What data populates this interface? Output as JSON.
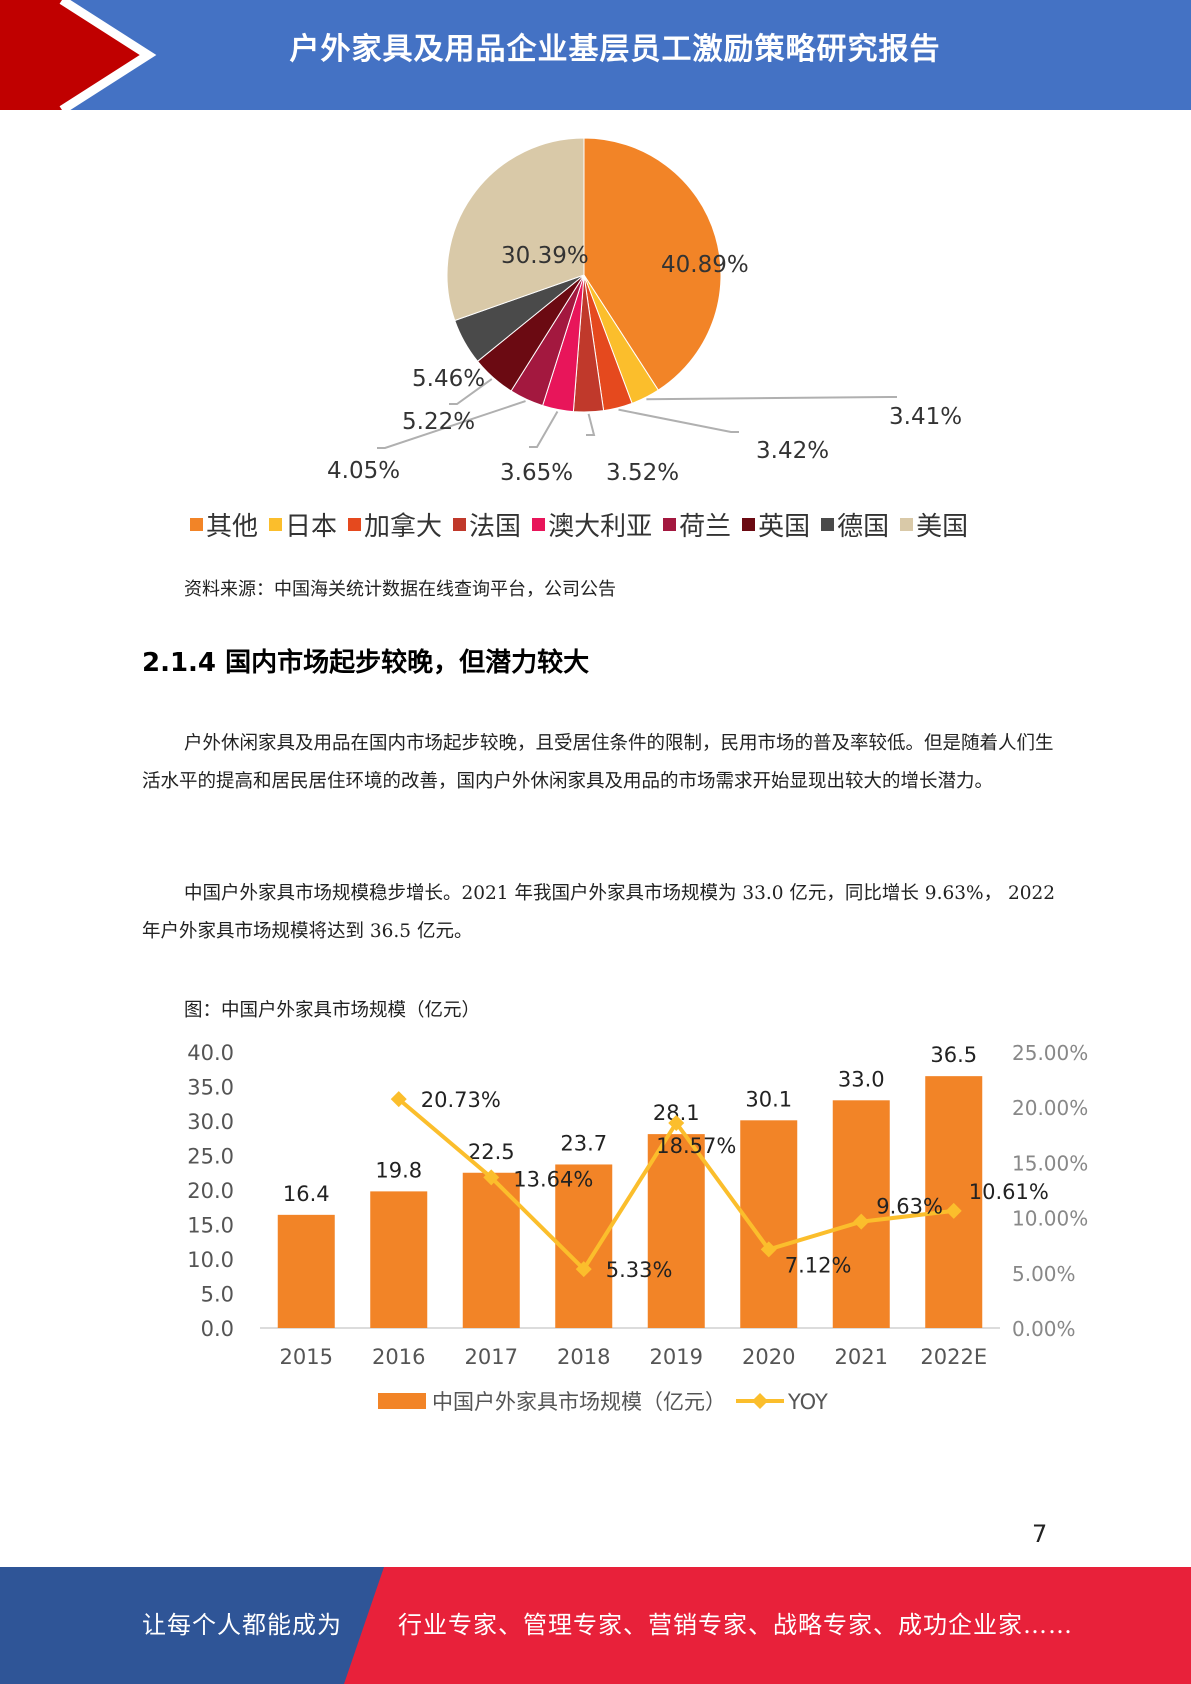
{
  "header": {
    "title": "户外家具及用品企业基层员工激励策略研究报告",
    "colors": {
      "bar": "#4472c4",
      "accent": "#c00000"
    }
  },
  "chart_data": [
    {
      "type": "pie",
      "slices": [
        {
          "name": "其他",
          "value": 40.89,
          "label": "40.89%",
          "color": "#f28427"
        },
        {
          "name": "日本",
          "value": 3.41,
          "label": "3.41%",
          "color": "#fbbe2c"
        },
        {
          "name": "加拿大",
          "value": 3.42,
          "label": "3.42%",
          "color": "#e5491e"
        },
        {
          "name": "法国",
          "value": 3.52,
          "label": "3.52%",
          "color": "#c0392b"
        },
        {
          "name": "澳大利亚",
          "value": 3.65,
          "label": "3.65%",
          "color": "#e8155a"
        },
        {
          "name": "荷兰",
          "value": 4.05,
          "label": "4.05%",
          "color": "#a3183f"
        },
        {
          "name": "英国",
          "value": 5.22,
          "label": "5.22%",
          "color": "#6b0a12"
        },
        {
          "name": "德国",
          "value": 5.46,
          "label": "5.46%",
          "color": "#4a4a4a"
        },
        {
          "name": "美国",
          "value": 30.39,
          "label": "30.39%",
          "color": "#d9c9a8"
        }
      ],
      "legend_position": "bottom"
    },
    {
      "type": "bar",
      "categories": [
        "2015",
        "2016",
        "2017",
        "2018",
        "2019",
        "2020",
        "2021",
        "2022E"
      ],
      "series": [
        {
          "name": "中国户外家具市场规模（亿元）",
          "type": "bar",
          "axis": "left",
          "color": "#f28427",
          "values": [
            16.4,
            19.8,
            22.5,
            23.7,
            28.1,
            30.1,
            33.0,
            36.5
          ],
          "labels": [
            "16.4",
            "19.8",
            "22.5",
            "23.7",
            "28.1",
            "30.1",
            "33.0",
            "36.5"
          ]
        },
        {
          "name": "YOY",
          "type": "line",
          "axis": "right",
          "color": "#fbbe2c",
          "values": [
            null,
            20.73,
            13.64,
            5.33,
            18.57,
            7.12,
            9.63,
            10.61
          ],
          "labels": [
            "",
            "20.73%",
            "13.64%",
            "5.33%",
            "18.57%",
            "7.12%",
            "9.63%",
            "10.61%"
          ]
        }
      ],
      "ylim": [
        0,
        40
      ],
      "yticks": [
        "0.0",
        "5.0",
        "10.0",
        "15.0",
        "20.0",
        "25.0",
        "30.0",
        "35.0",
        "40.0"
      ],
      "y2lim": [
        0,
        25
      ],
      "y2ticks": [
        "0.00%",
        "5.00%",
        "10.00%",
        "15.00%",
        "20.00%",
        "25.00%"
      ],
      "grid": false,
      "legend_position": "bottom"
    }
  ],
  "source": "资料来源：中国海关统计数据在线查询平台，公司公告",
  "section": {
    "title": "2.1.4 国内市场起步较晚，但潜力较大"
  },
  "paragraphs": [
    "户外休闲家具及用品在国内市场起步较晚，且受居住条件的限制，民用市场的普及率较低。但是随着人们生活水平的提高和居民居住环境的改善，国内户外休闲家具及用品的市场需求开始显现出较大的增长潜力。",
    "中国户外家具市场规模稳步增长。2021 年我国户外家具市场规模为 33.0 亿元，同比增长 9.63%， 2022 年户外家具市场规模将达到 36.5 亿元。"
  ],
  "figure_caption": "图：中国户外家具市场规模（亿元）",
  "page_number": "7",
  "footer": {
    "left": "让每个人都能成为",
    "right": "行业专家、管理专家、营销专家、战略专家、成功企业家……",
    "colors": {
      "left": "#2f5597",
      "right": "#e8213a"
    }
  }
}
